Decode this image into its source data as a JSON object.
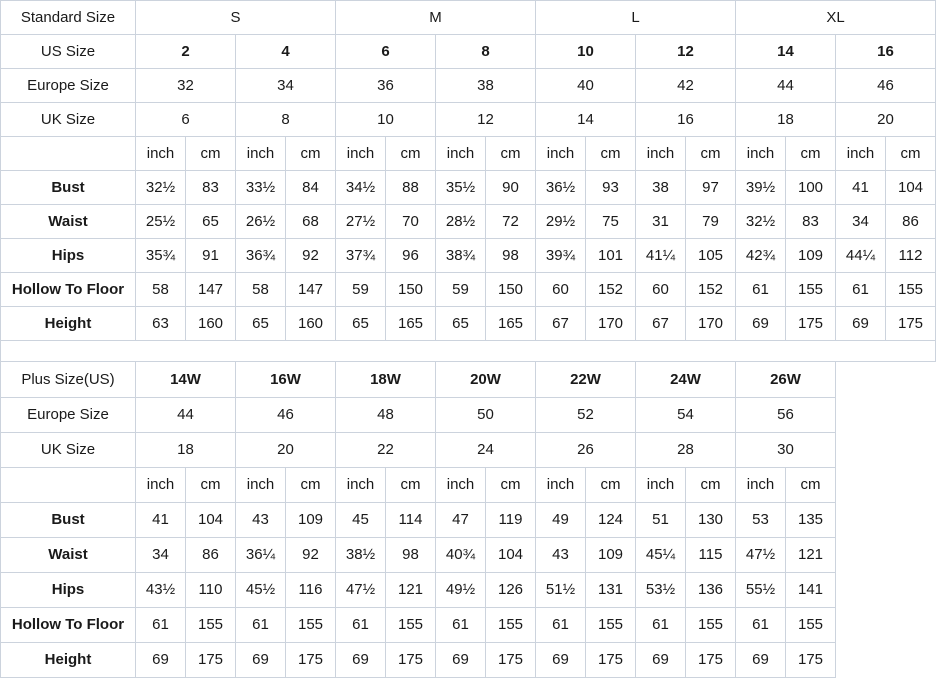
{
  "styles": {
    "border_color": "#ccd3dd",
    "text_color": "#1a1a1a",
    "background": "#ffffff",
    "label_col_width": 135,
    "data_col_width": 50
  },
  "chart_data": [
    {
      "type": "table",
      "name": "standard-size-table",
      "num_data_cols": 16,
      "rows": [
        {
          "label": "Standard Size",
          "span": 4,
          "cells": [
            "S",
            "M",
            "L",
            "XL"
          ]
        },
        {
          "label": "US Size",
          "span": 2,
          "cells_bold": true,
          "cells": [
            "2",
            "4",
            "6",
            "8",
            "10",
            "12",
            "14",
            "16"
          ]
        },
        {
          "label": "Europe Size",
          "span": 2,
          "cells": [
            "32",
            "34",
            "36",
            "38",
            "40",
            "42",
            "44",
            "46"
          ]
        },
        {
          "label": "UK Size",
          "span": 2,
          "cells": [
            "6",
            "8",
            "10",
            "12",
            "14",
            "16",
            "18",
            "20"
          ]
        },
        {
          "label": "",
          "span": 1,
          "cells": [
            "inch",
            "cm",
            "inch",
            "cm",
            "inch",
            "cm",
            "inch",
            "cm",
            "inch",
            "cm",
            "inch",
            "cm",
            "inch",
            "cm",
            "inch",
            "cm"
          ]
        },
        {
          "label": "Bust",
          "label_bold": true,
          "span": 1,
          "cells": [
            "32½",
            "83",
            "33½",
            "84",
            "34½",
            "88",
            "35½",
            "90",
            "36½",
            "93",
            "38",
            "97",
            "39½",
            "100",
            "41",
            "104"
          ]
        },
        {
          "label": "Waist",
          "label_bold": true,
          "span": 1,
          "cells": [
            "25½",
            "65",
            "26½",
            "68",
            "27½",
            "70",
            "28½",
            "72",
            "29½",
            "75",
            "31",
            "79",
            "32½",
            "83",
            "34",
            "86"
          ]
        },
        {
          "label": "Hips",
          "label_bold": true,
          "span": 1,
          "cells": [
            "35¾",
            "91",
            "36¾",
            "92",
            "37¾",
            "96",
            "38¾",
            "98",
            "39¾",
            "101",
            "41¼",
            "105",
            "42¾",
            "109",
            "44¼",
            "112"
          ]
        },
        {
          "label": "Hollow To Floor",
          "label_bold": true,
          "span": 1,
          "cells": [
            "58",
            "147",
            "58",
            "147",
            "59",
            "150",
            "59",
            "150",
            "60",
            "152",
            "60",
            "152",
            "61",
            "155",
            "61",
            "155"
          ]
        },
        {
          "label": "Height",
          "label_bold": true,
          "span": 1,
          "cells": [
            "63",
            "160",
            "65",
            "160",
            "65",
            "165",
            "65",
            "165",
            "67",
            "170",
            "67",
            "170",
            "69",
            "175",
            "69",
            "175"
          ]
        }
      ]
    },
    {
      "type": "table",
      "name": "plus-size-table",
      "num_data_cols": 14,
      "rows": [
        {
          "label": "Plus Size(US)",
          "span": 2,
          "cells_bold": true,
          "cells": [
            "14W",
            "16W",
            "18W",
            "20W",
            "22W",
            "24W",
            "26W"
          ]
        },
        {
          "label": "Europe Size",
          "span": 2,
          "cells": [
            "44",
            "46",
            "48",
            "50",
            "52",
            "54",
            "56"
          ]
        },
        {
          "label": "UK Size",
          "span": 2,
          "cells": [
            "18",
            "20",
            "22",
            "24",
            "26",
            "28",
            "30"
          ]
        },
        {
          "label": "",
          "span": 1,
          "cells": [
            "inch",
            "cm",
            "inch",
            "cm",
            "inch",
            "cm",
            "inch",
            "cm",
            "inch",
            "cm",
            "inch",
            "cm",
            "inch",
            "cm"
          ]
        },
        {
          "label": "Bust",
          "label_bold": true,
          "span": 1,
          "cells": [
            "41",
            "104",
            "43",
            "109",
            "45",
            "114",
            "47",
            "119",
            "49",
            "124",
            "51",
            "130",
            "53",
            "135"
          ]
        },
        {
          "label": "Waist",
          "label_bold": true,
          "span": 1,
          "cells": [
            "34",
            "86",
            "36¼",
            "92",
            "38½",
            "98",
            "40¾",
            "104",
            "43",
            "109",
            "45¼",
            "115",
            "47½",
            "121"
          ]
        },
        {
          "label": "Hips",
          "label_bold": true,
          "span": 1,
          "cells": [
            "43½",
            "110",
            "45½",
            "116",
            "47½",
            "121",
            "49½",
            "126",
            "51½",
            "131",
            "53½",
            "136",
            "55½",
            "141"
          ]
        },
        {
          "label": "Hollow To Floor",
          "label_bold": true,
          "span": 1,
          "cells": [
            "61",
            "155",
            "61",
            "155",
            "61",
            "155",
            "61",
            "155",
            "61",
            "155",
            "61",
            "155",
            "61",
            "155"
          ]
        },
        {
          "label": "Height",
          "label_bold": true,
          "span": 1,
          "cells": [
            "69",
            "175",
            "69",
            "175",
            "69",
            "175",
            "69",
            "175",
            "69",
            "175",
            "69",
            "175",
            "69",
            "175"
          ]
        }
      ]
    }
  ]
}
